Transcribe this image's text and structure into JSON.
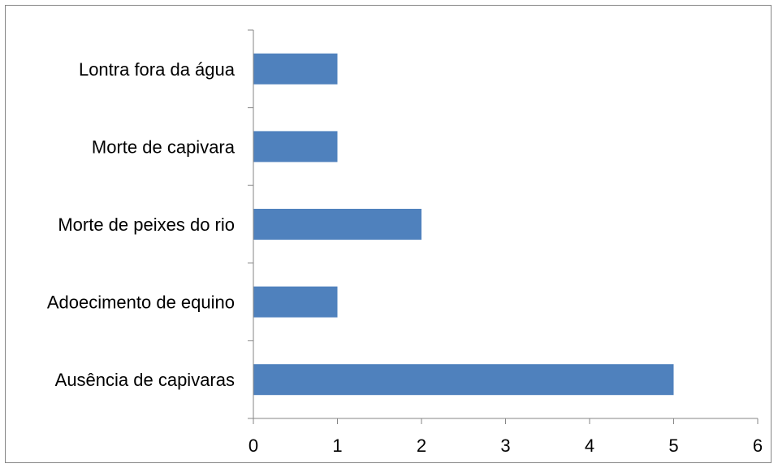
{
  "chart_data": {
    "type": "bar",
    "orientation": "horizontal",
    "categories": [
      "Ausência de capivaras",
      "Adoecimento de equino",
      "Morte de peixes do rio",
      "Morte de capivara",
      "Lontra fora da água"
    ],
    "values": [
      5,
      1,
      2,
      1,
      1
    ],
    "xlim": [
      0,
      6
    ],
    "x_ticks": [
      "0",
      "1",
      "2",
      "3",
      "4",
      "5",
      "6"
    ],
    "title": "",
    "xlabel": "",
    "ylabel": "",
    "grid": false,
    "legend": false,
    "colors": {
      "bar": "#4f81bd",
      "axis": "#868686",
      "border": "#868686",
      "text": "#000000"
    }
  }
}
